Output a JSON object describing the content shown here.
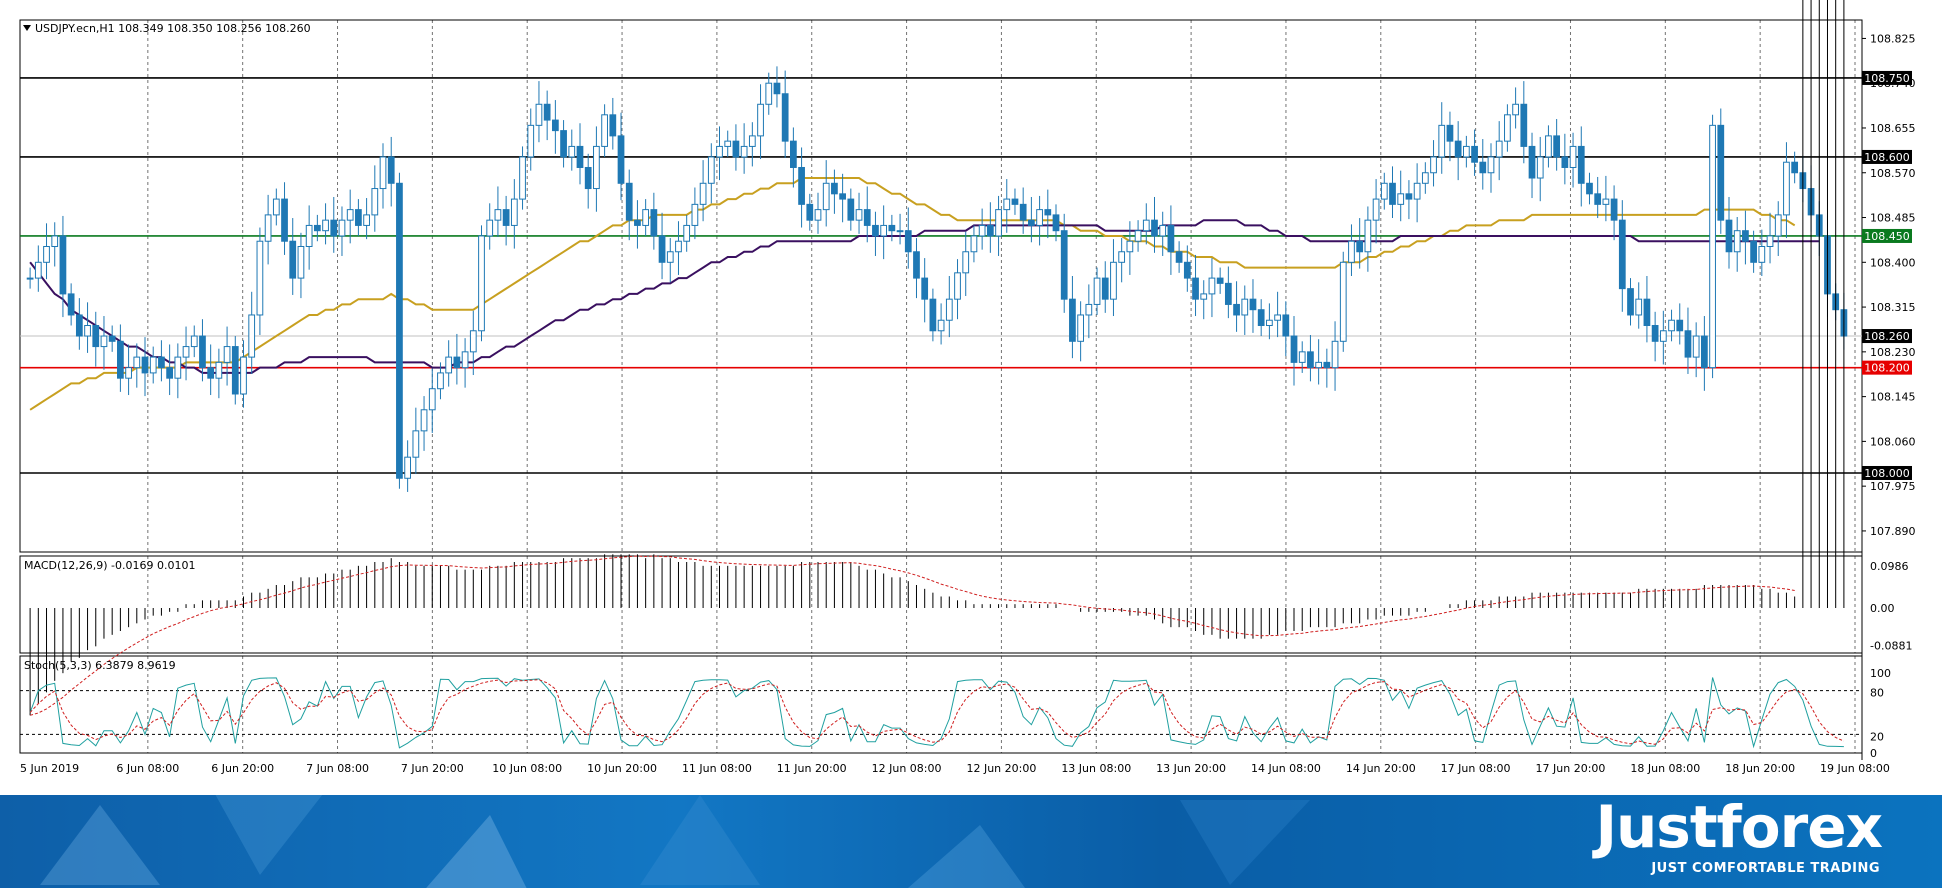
{
  "header": {
    "symbol_line": "USDJPY.ecn,H1  108.349 108.350 108.256 108.260"
  },
  "main_panel": {
    "price_ticks": [
      "108.825",
      "108.740",
      "108.655",
      "108.570",
      "108.485",
      "108.400",
      "108.315",
      "108.230",
      "108.145",
      "108.060",
      "107.975",
      "107.890"
    ],
    "hlines": [
      {
        "value": 108.75,
        "label": "108.750",
        "color": "#000000",
        "label_bg": "#000000"
      },
      {
        "value": 108.6,
        "label": "108.600",
        "color": "#000000",
        "label_bg": "#000000"
      },
      {
        "value": 108.45,
        "label": "108.450",
        "color": "#0a7a1f",
        "label_bg": "#0a7a1f"
      },
      {
        "value": 108.26,
        "label": "108.260",
        "color": "#c0c0c0",
        "label_bg": "#000000"
      },
      {
        "value": 108.2,
        "label": "108.200",
        "color": "#e60000",
        "label_bg": "#e60000"
      },
      {
        "value": 108.0,
        "label": "108.000",
        "color": "#000000",
        "label_bg": "#000000"
      }
    ]
  },
  "macd_panel": {
    "label": "MACD(12,26,9) -0.0169 0.0101",
    "ticks": [
      "0.0986",
      "0.00",
      "-0.0881"
    ]
  },
  "stoch_panel": {
    "label": "Stoch(5,3,3) 6.3879 8.9619",
    "ticks": [
      "100",
      "80",
      "20",
      "0"
    ]
  },
  "time_labels": [
    "5 Jun 2019",
    "6 Jun 08:00",
    "6 Jun 20:00",
    "7 Jun 08:00",
    "7 Jun 20:00",
    "10 Jun 08:00",
    "10 Jun 20:00",
    "11 Jun 08:00",
    "11 Jun 20:00",
    "12 Jun 08:00",
    "12 Jun 20:00",
    "13 Jun 08:00",
    "13 Jun 20:00",
    "14 Jun 08:00",
    "14 Jun 20:00",
    "17 Jun 08:00",
    "17 Jun 20:00",
    "18 Jun 08:00",
    "18 Jun 20:00",
    "19 Jun 08:00"
  ],
  "brand": {
    "name": "Justforex",
    "tagline": "JUST COMFORTABLE TRADING"
  },
  "colors": {
    "candle": "#1e78b4",
    "ma_fast": "#c8a020",
    "ma_slow": "#3a1060",
    "macd_signal": "#d02020",
    "stoch_main": "#20a0a0",
    "stoch_signal": "#d02020"
  },
  "chart_data": {
    "type": "candlestick",
    "ylim": [
      107.85,
      108.86
    ],
    "closes": [
      108.37,
      108.4,
      108.43,
      108.45,
      108.34,
      108.3,
      108.26,
      108.28,
      108.24,
      108.26,
      108.25,
      108.18,
      108.2,
      108.22,
      108.19,
      108.22,
      108.2,
      108.18,
      108.22,
      108.24,
      108.26,
      108.2,
      108.18,
      108.21,
      108.24,
      108.15,
      108.22,
      108.3,
      108.44,
      108.49,
      108.52,
      108.44,
      108.37,
      108.43,
      108.47,
      108.46,
      108.48,
      108.45,
      108.48,
      108.5,
      108.47,
      108.49,
      108.54,
      108.6,
      108.55,
      107.99,
      108.03,
      108.08,
      108.12,
      108.16,
      108.19,
      108.22,
      108.2,
      108.23,
      108.27,
      108.45,
      108.48,
      108.5,
      108.47,
      108.52,
      108.6,
      108.66,
      108.7,
      108.67,
      108.65,
      108.6,
      108.62,
      108.58,
      108.54,
      108.62,
      108.68,
      108.64,
      108.55,
      108.48,
      108.47,
      108.5,
      108.45,
      108.4,
      108.42,
      108.44,
      108.47,
      108.51,
      108.55,
      108.6,
      108.62,
      108.63,
      108.6,
      108.62,
      108.64,
      108.7,
      108.74,
      108.72,
      108.63,
      108.58,
      108.51,
      108.48,
      108.5,
      108.55,
      108.53,
      108.52,
      108.48,
      108.5,
      108.47,
      108.45,
      108.47,
      108.46,
      108.46,
      108.42,
      108.37,
      108.33,
      108.27,
      108.29,
      108.33,
      108.38,
      108.42,
      108.45,
      108.47,
      108.45,
      108.5,
      108.52,
      108.51,
      108.48,
      108.47,
      108.5,
      108.49,
      108.46,
      108.33,
      108.25,
      108.3,
      108.32,
      108.37,
      108.33,
      108.4,
      108.42,
      108.44,
      108.46,
      108.48,
      108.45,
      108.47,
      108.42,
      108.4,
      108.37,
      108.33,
      108.34,
      108.37,
      108.36,
      108.32,
      108.3,
      108.33,
      108.31,
      108.28,
      108.29,
      108.3,
      108.26,
      108.21,
      108.23,
      108.2,
      108.21,
      108.2,
      108.25,
      108.4,
      108.44,
      108.42,
      108.48,
      108.52,
      108.55,
      108.51,
      108.53,
      108.52,
      108.55,
      108.57,
      108.6,
      108.66,
      108.63,
      108.6,
      108.62,
      108.59,
      108.57,
      108.6,
      108.63,
      108.68,
      108.7,
      108.62,
      108.56,
      108.6,
      108.64,
      108.6,
      108.58,
      108.62,
      108.55,
      108.53,
      108.51,
      108.52,
      108.48,
      108.35,
      108.3,
      108.33,
      108.28,
      108.25,
      108.27,
      108.29,
      108.27,
      108.22,
      108.26,
      108.2,
      108.66,
      108.48,
      108.42,
      108.46,
      108.44,
      108.4,
      108.43,
      108.45,
      108.49,
      108.59,
      108.57,
      108.54,
      108.49,
      108.45,
      108.34,
      108.31,
      108.26
    ],
    "ma_fast": [
      108.12,
      108.13,
      108.14,
      108.15,
      108.16,
      108.17,
      108.17,
      108.18,
      108.18,
      108.19,
      108.19,
      108.19,
      108.19,
      108.2,
      108.2,
      108.2,
      108.2,
      108.2,
      108.2,
      108.21,
      108.21,
      108.21,
      108.21,
      108.21,
      108.21,
      108.21,
      108.22,
      108.23,
      108.24,
      108.25,
      108.26,
      108.27,
      108.28,
      108.29,
      108.3,
      108.3,
      108.31,
      108.31,
      108.32,
      108.32,
      108.33,
      108.33,
      108.33,
      108.33,
      108.34,
      108.33,
      108.33,
      108.32,
      108.32,
      108.31,
      108.31,
      108.31,
      108.31,
      108.31,
      108.31,
      108.32,
      108.33,
      108.34,
      108.35,
      108.36,
      108.37,
      108.38,
      108.39,
      108.4,
      108.41,
      108.42,
      108.43,
      108.44,
      108.44,
      108.45,
      108.46,
      108.47,
      108.47,
      108.48,
      108.48,
      108.48,
      108.49,
      108.49,
      108.49,
      108.49,
      108.49,
      108.5,
      108.5,
      108.51,
      108.51,
      108.52,
      108.52,
      108.53,
      108.53,
      108.54,
      108.54,
      108.55,
      108.55,
      108.55,
      108.56,
      108.56,
      108.56,
      108.56,
      108.56,
      108.56,
      108.56,
      108.56,
      108.55,
      108.55,
      108.54,
      108.53,
      108.53,
      108.52,
      108.51,
      108.51,
      108.5,
      108.49,
      108.49,
      108.48,
      108.48,
      108.48,
      108.48,
      108.48,
      108.48,
      108.48,
      108.48,
      108.48,
      108.48,
      108.48,
      108.48,
      108.48,
      108.47,
      108.47,
      108.46,
      108.46,
      108.46,
      108.45,
      108.45,
      108.45,
      108.44,
      108.44,
      108.44,
      108.43,
      108.43,
      108.42,
      108.42,
      108.42,
      108.41,
      108.41,
      108.41,
      108.4,
      108.4,
      108.4,
      108.39,
      108.39,
      108.39,
      108.39,
      108.39,
      108.39,
      108.39,
      108.39,
      108.39,
      108.39,
      108.39,
      108.39,
      108.4,
      108.4,
      108.4,
      108.41,
      108.41,
      108.42,
      108.42,
      108.43,
      108.43,
      108.44,
      108.44,
      108.45,
      108.45,
      108.46,
      108.46,
      108.47,
      108.47,
      108.47,
      108.47,
      108.48,
      108.48,
      108.48,
      108.48,
      108.49,
      108.49,
      108.49,
      108.49,
      108.49,
      108.49,
      108.49,
      108.49,
      108.49,
      108.49,
      108.49,
      108.49,
      108.49,
      108.49,
      108.49,
      108.49,
      108.49,
      108.49,
      108.49,
      108.49,
      108.49,
      108.5,
      108.5,
      108.5,
      108.5,
      108.5,
      108.5,
      108.5,
      108.49,
      108.49,
      108.48,
      108.48,
      108.47
    ],
    "ma_slow": [
      108.4,
      108.38,
      108.36,
      108.34,
      108.33,
      108.31,
      108.3,
      108.29,
      108.28,
      108.27,
      108.26,
      108.25,
      108.24,
      108.24,
      108.23,
      108.22,
      108.22,
      108.21,
      108.21,
      108.2,
      108.2,
      108.19,
      108.19,
      108.19,
      108.19,
      108.19,
      108.19,
      108.19,
      108.2,
      108.2,
      108.2,
      108.21,
      108.21,
      108.21,
      108.22,
      108.22,
      108.22,
      108.22,
      108.22,
      108.22,
      108.22,
      108.22,
      108.21,
      108.21,
      108.21,
      108.21,
      108.21,
      108.21,
      108.21,
      108.2,
      108.2,
      108.2,
      108.21,
      108.21,
      108.21,
      108.22,
      108.22,
      108.23,
      108.24,
      108.24,
      108.25,
      108.26,
      108.27,
      108.28,
      108.29,
      108.29,
      108.3,
      108.31,
      108.31,
      108.32,
      108.32,
      108.33,
      108.33,
      108.34,
      108.34,
      108.35,
      108.35,
      108.36,
      108.36,
      108.37,
      108.37,
      108.38,
      108.39,
      108.4,
      108.4,
      108.41,
      108.41,
      108.42,
      108.42,
      108.43,
      108.43,
      108.44,
      108.44,
      108.44,
      108.44,
      108.44,
      108.44,
      108.44,
      108.44,
      108.44,
      108.44,
      108.45,
      108.45,
      108.45,
      108.45,
      108.45,
      108.45,
      108.45,
      108.45,
      108.46,
      108.46,
      108.46,
      108.46,
      108.46,
      108.46,
      108.47,
      108.47,
      108.47,
      108.47,
      108.47,
      108.47,
      108.47,
      108.47,
      108.47,
      108.47,
      108.47,
      108.47,
      108.47,
      108.47,
      108.47,
      108.47,
      108.46,
      108.46,
      108.46,
      108.46,
      108.46,
      108.46,
      108.46,
      108.47,
      108.47,
      108.47,
      108.47,
      108.47,
      108.48,
      108.48,
      108.48,
      108.48,
      108.48,
      108.47,
      108.47,
      108.47,
      108.46,
      108.46,
      108.45,
      108.45,
      108.45,
      108.44,
      108.44,
      108.44,
      108.44,
      108.44,
      108.44,
      108.44,
      108.44,
      108.44,
      108.44,
      108.44,
      108.45,
      108.45,
      108.45,
      108.45,
      108.45,
      108.45,
      108.45,
      108.45,
      108.45,
      108.45,
      108.45,
      108.45,
      108.45,
      108.45,
      108.45,
      108.45,
      108.45,
      108.45,
      108.45,
      108.45,
      108.45,
      108.45,
      108.45,
      108.45,
      108.45,
      108.45,
      108.45,
      108.45,
      108.45,
      108.44,
      108.44,
      108.44,
      108.44,
      108.44,
      108.44,
      108.44,
      108.44,
      108.44,
      108.44,
      108.44,
      108.44,
      108.44,
      108.44,
      108.44,
      108.44,
      108.44,
      108.44,
      108.44,
      108.44,
      108.44,
      108.44,
      108.44
    ]
  }
}
